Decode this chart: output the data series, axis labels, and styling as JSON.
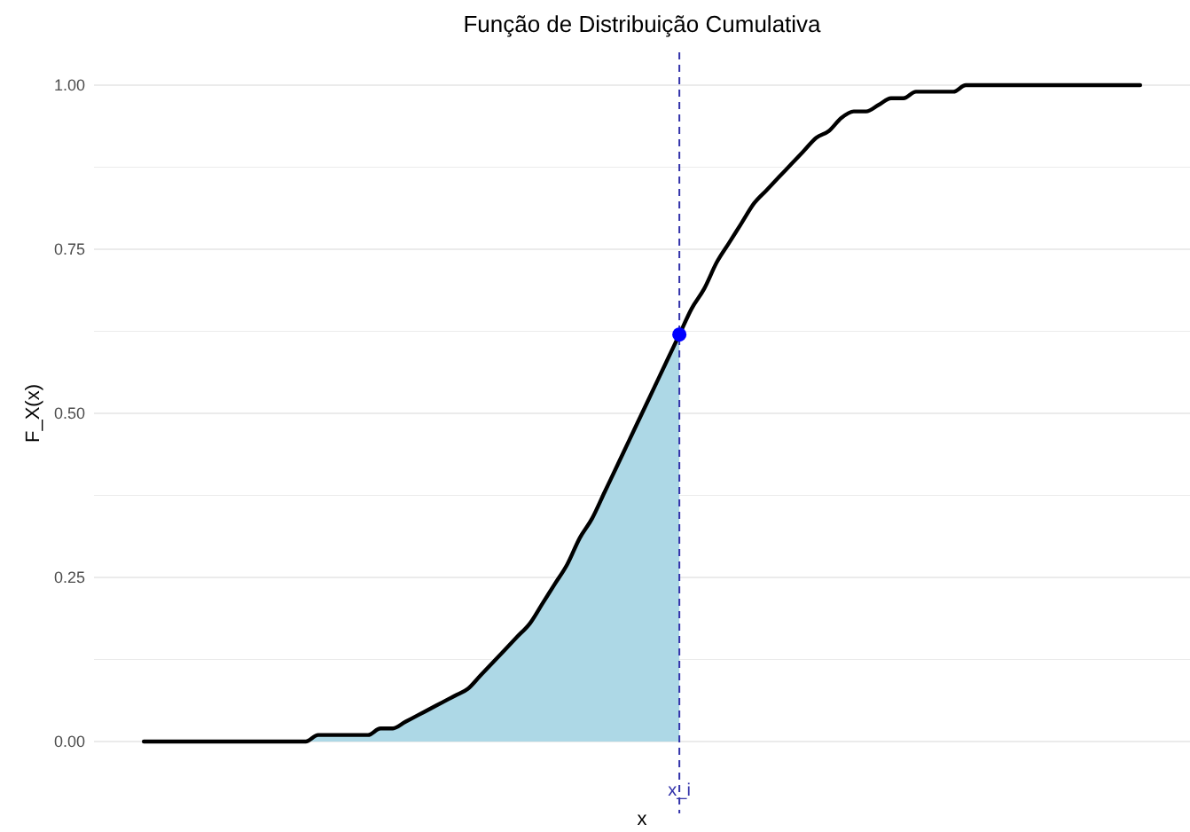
{
  "chart_data": {
    "type": "line",
    "title": "Função de Distribuição Cumulativa",
    "xlabel": "x",
    "ylabel": "F_X(x)",
    "categories": [
      null,
      null,
      null,
      null,
      null,
      null,
      null,
      null,
      null,
      null,
      null,
      null,
      null,
      null,
      null,
      null,
      null,
      null,
      null,
      null,
      null,
      null,
      null,
      null,
      null,
      null,
      null,
      null,
      null,
      null,
      null,
      null,
      null,
      null,
      null,
      null,
      null,
      null,
      null,
      null,
      null,
      null,
      null,
      "x_i",
      null,
      null,
      null,
      null,
      null,
      null,
      null,
      null,
      null,
      null,
      null,
      null,
      null,
      null,
      null,
      null,
      null,
      null,
      null,
      null,
      null,
      null,
      null,
      null,
      null,
      null,
      null,
      null,
      null,
      null,
      null,
      null,
      null,
      null,
      null,
      null,
      null
    ],
    "series": [
      {
        "type": "area",
        "color": "#add8e6",
        "values": [
          0,
          0,
          0,
          0,
          0,
          0,
          0,
          0,
          0,
          0,
          0,
          0,
          0,
          0,
          0.01,
          0.01,
          0.01,
          0.01,
          0.01,
          0.02,
          0.02,
          0.03,
          0.04,
          0.05,
          0.06,
          0.07,
          0.08,
          0.1,
          0.12,
          0.14,
          0.16,
          0.18,
          0.21,
          0.24,
          0.27,
          0.31,
          0.34,
          0.38,
          0.42,
          0.46,
          0.5,
          0.54,
          0.58,
          0.62,
          null,
          null,
          null,
          null,
          null,
          null,
          null,
          null,
          null,
          null,
          null,
          null,
          null,
          null,
          null,
          null,
          null,
          null,
          null,
          null,
          null,
          null,
          null,
          null,
          null,
          null,
          null,
          null,
          null,
          null,
          null,
          null,
          null,
          null,
          null,
          null,
          null
        ]
      },
      {
        "type": "line",
        "color": "#000000",
        "values": [
          0,
          0,
          0,
          0,
          0,
          0,
          0,
          0,
          0,
          0,
          0,
          0,
          0,
          0,
          0.01,
          0.01,
          0.01,
          0.01,
          0.01,
          0.02,
          0.02,
          0.03,
          0.04,
          0.05,
          0.06,
          0.07,
          0.08,
          0.1,
          0.12,
          0.14,
          0.16,
          0.18,
          0.21,
          0.24,
          0.27,
          0.31,
          0.34,
          0.38,
          0.42,
          0.46,
          0.5,
          0.54,
          0.58,
          0.62,
          0.66,
          0.69,
          0.73,
          0.76,
          0.79,
          0.82,
          0.84,
          0.86,
          0.88,
          0.9,
          0.92,
          0.93,
          0.95,
          0.96,
          0.96,
          0.97,
          0.98,
          0.98,
          0.99,
          0.99,
          0.99,
          0.99,
          1,
          1,
          1,
          1,
          1,
          1,
          1,
          1,
          1,
          1,
          1,
          1,
          1,
          1,
          1
        ]
      },
      {
        "type": "scatter",
        "color": "#0000ff",
        "marker": "circle",
        "x": [
          "x_i"
        ],
        "values": [
          0.62
        ]
      }
    ],
    "ref_lines": [
      {
        "axis": "x",
        "value": "x_i",
        "color": "#3333aa",
        "line_style": "dashed"
      }
    ],
    "ylim": [
      0,
      1
    ],
    "yticks": [
      {
        "value": 0,
        "label": "0.00"
      },
      {
        "value": 0.125,
        "label": null
      },
      {
        "value": 0.25,
        "label": "0.25"
      },
      {
        "value": 0.375,
        "label": null
      },
      {
        "value": 0.5,
        "label": "0.50"
      },
      {
        "value": 0.625,
        "label": null
      },
      {
        "value": 0.75,
        "label": "0.75"
      },
      {
        "value": 0.875,
        "label": null
      },
      {
        "value": 1,
        "label": "1.00"
      }
    ],
    "grid": "y",
    "line_style": "solid"
  }
}
